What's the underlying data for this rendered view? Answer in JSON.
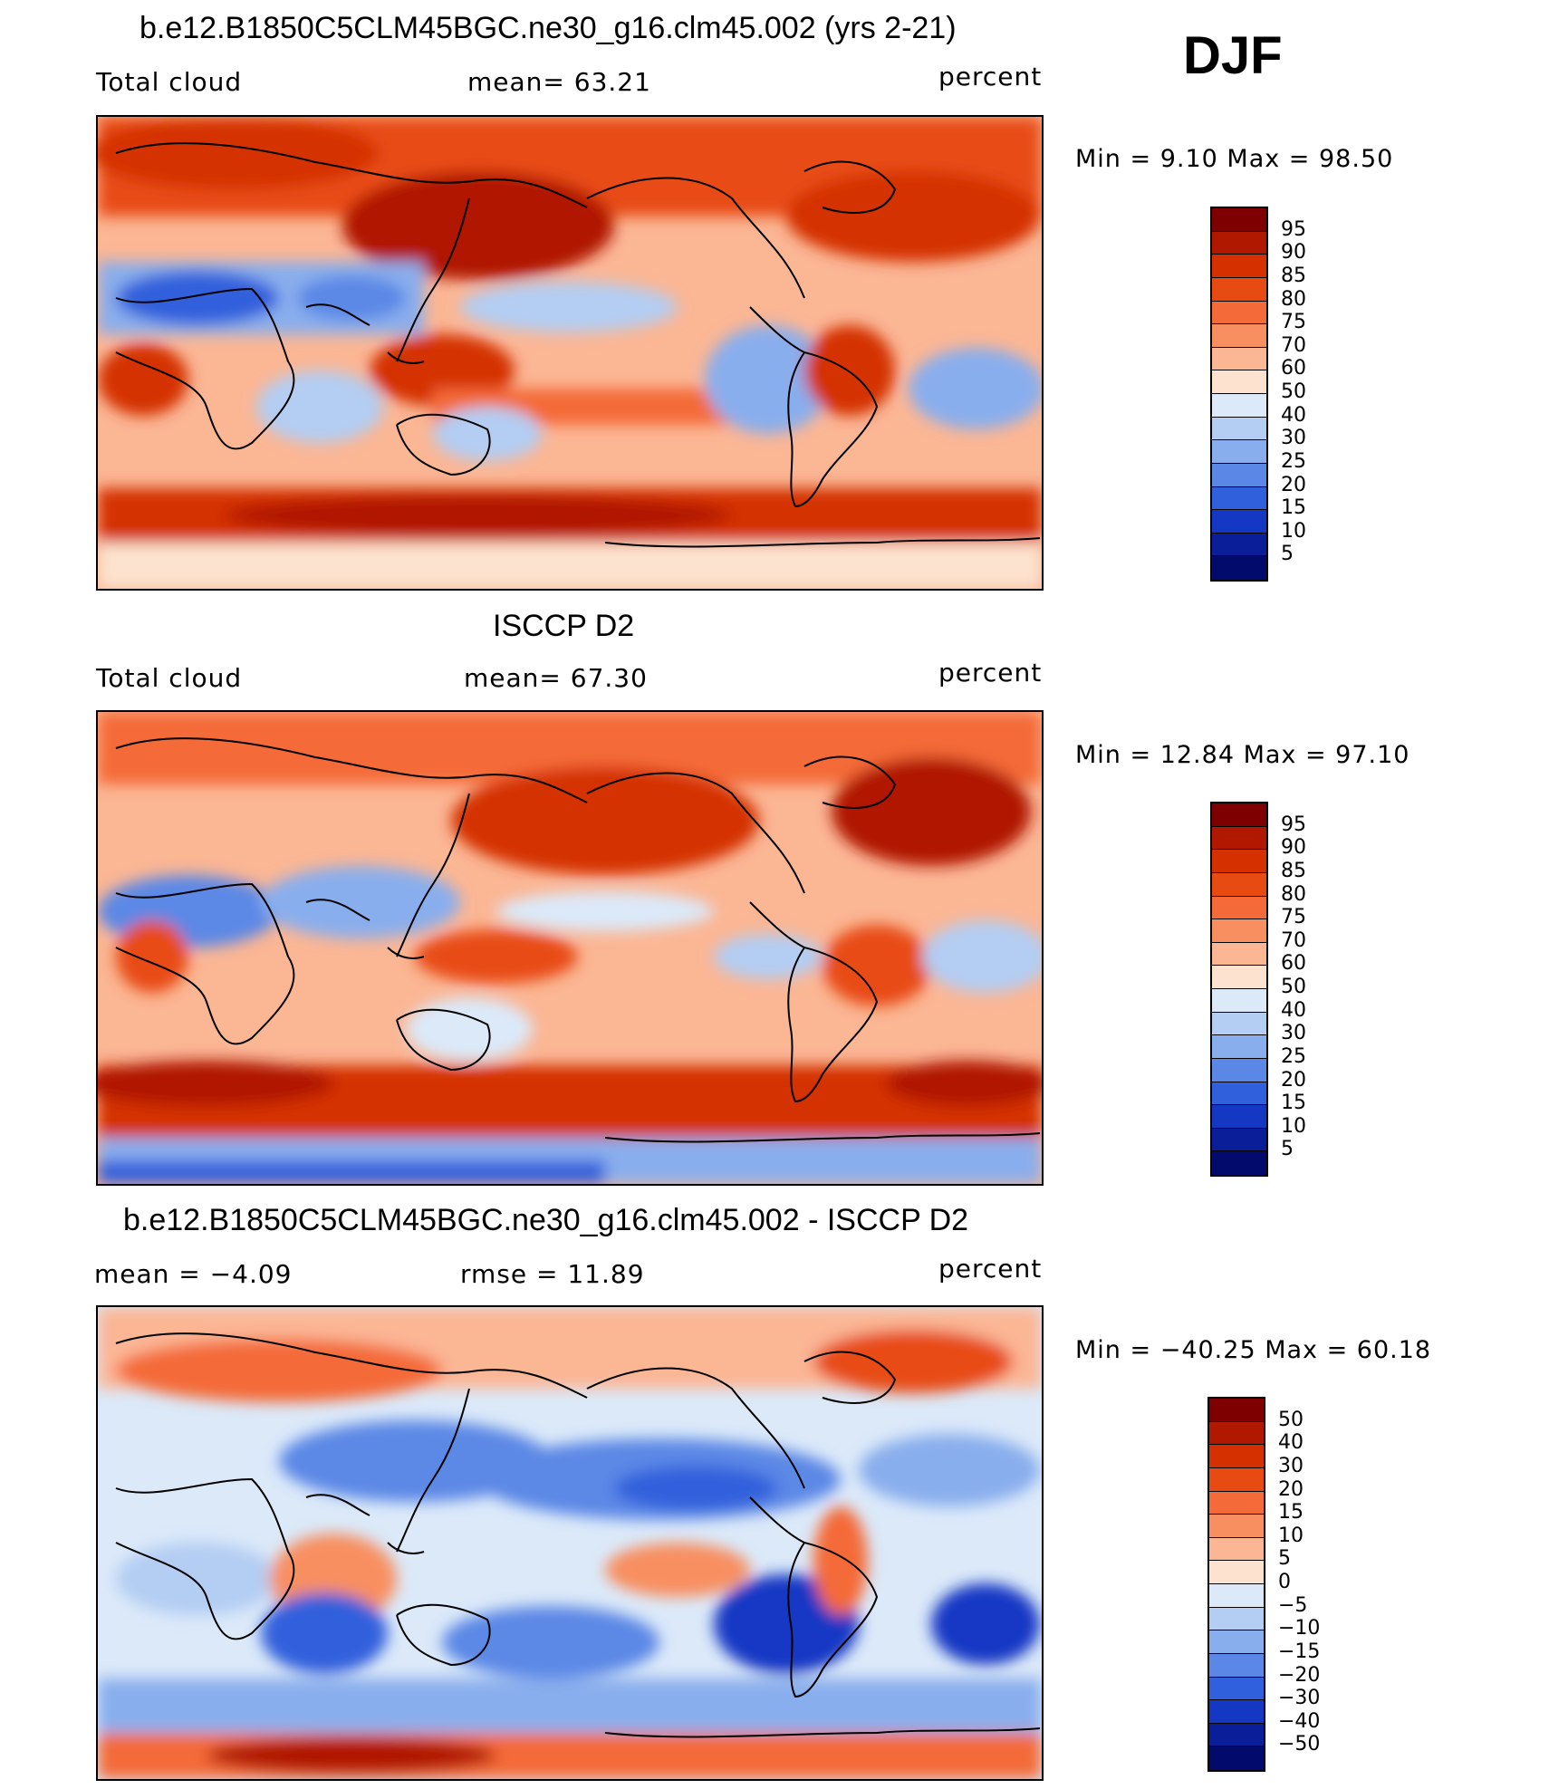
{
  "season_label": "DJF",
  "panels": [
    {
      "id": "model",
      "title": "b.e12.B1850C5CLM45BGC.ne30_g16.clm45.002 (yrs 2-21)",
      "left_label": "Total cloud",
      "center_label": "mean=   63.21",
      "right_label": "percent",
      "minmax": "Min =    9.10  Max =   98.50",
      "colorbar": {
        "labels": [
          "95",
          "90",
          "85",
          "80",
          "75",
          "70",
          "60",
          "50",
          "40",
          "30",
          "25",
          "20",
          "15",
          "10",
          "5"
        ],
        "colors": [
          "#7f0000",
          "#b01800",
          "#d43000",
          "#e84b12",
          "#f46a38",
          "#f88f60",
          "#fbb694",
          "#fde3cf",
          "#dbe9f9",
          "#b3cdf3",
          "#89aeed",
          "#5b88e6",
          "#3060dc",
          "#1438c4",
          "#0a1e9a",
          "#020b6c"
        ]
      }
    },
    {
      "id": "obs",
      "title": "ISCCP D2",
      "left_label": "Total cloud",
      "center_label": "mean=   67.30",
      "right_label": "percent",
      "minmax": "Min =   12.84  Max =   97.10",
      "colorbar": {
        "labels": [
          "95",
          "90",
          "85",
          "80",
          "75",
          "70",
          "60",
          "50",
          "40",
          "30",
          "25",
          "20",
          "15",
          "10",
          "5"
        ],
        "colors": [
          "#7f0000",
          "#b01800",
          "#d43000",
          "#e84b12",
          "#f46a38",
          "#f88f60",
          "#fbb694",
          "#fde3cf",
          "#dbe9f9",
          "#b3cdf3",
          "#89aeed",
          "#5b88e6",
          "#3060dc",
          "#1438c4",
          "#0a1e9a",
          "#020b6c"
        ]
      }
    },
    {
      "id": "diff",
      "title": "b.e12.B1850C5CLM45BGC.ne30_g16.clm45.002 - ISCCP D2",
      "left_label": "mean =   −4.09",
      "center_label": "rmse =   11.89",
      "right_label": "percent",
      "minmax": "Min = −40.25  Max =   60.18",
      "colorbar": {
        "labels": [
          "50",
          "40",
          "30",
          "20",
          "15",
          "10",
          "5",
          "0",
          "−5",
          "−10",
          "−15",
          "−20",
          "−30",
          "−40",
          "−50"
        ],
        "colors": [
          "#7f0000",
          "#b01800",
          "#d43000",
          "#e84b12",
          "#f46a38",
          "#f88f60",
          "#fbb694",
          "#fde3cf",
          "#dbe9f9",
          "#b3cdf3",
          "#89aeed",
          "#5b88e6",
          "#3060dc",
          "#1438c4",
          "#0a1e9a",
          "#020b6c"
        ]
      }
    }
  ]
}
